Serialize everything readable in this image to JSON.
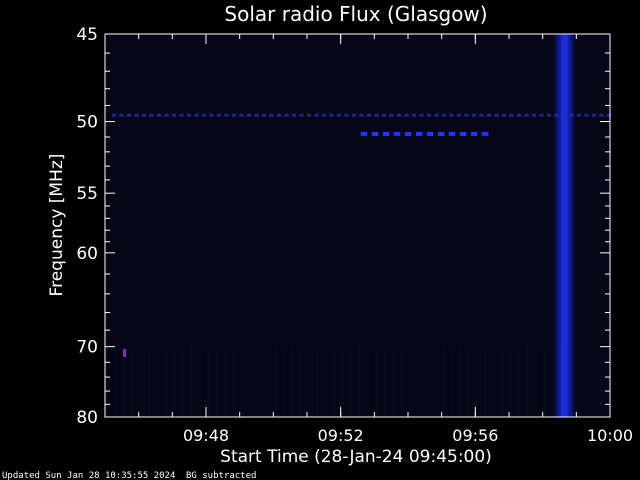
{
  "chart_data": {
    "type": "heatmap",
    "title": "Solar radio Flux (Glasgow)",
    "xlabel": "Start Time (28-Jan-24 09:45:00)",
    "ylabel": "Frequency [MHz]",
    "x_unit": "minutes after 09:45:00",
    "xlim": [
      0,
      15
    ],
    "ylim": [
      45,
      80
    ],
    "y_scale": "reciprocal",
    "y_inverted": true,
    "x_ticks": [
      {
        "value": 3,
        "label": "09:48"
      },
      {
        "value": 7,
        "label": "09:52"
      },
      {
        "value": 11,
        "label": "09:56"
      },
      {
        "value": 15,
        "label": "10:00"
      }
    ],
    "y_ticks": [
      {
        "value": 45,
        "label": "45"
      },
      {
        "value": 50,
        "label": "50"
      },
      {
        "value": 55,
        "label": "55"
      },
      {
        "value": 60,
        "label": "60"
      },
      {
        "value": 70,
        "label": "70"
      },
      {
        "value": 80,
        "label": "80"
      }
    ],
    "features": [
      {
        "name": "burst",
        "t_start": 13.3,
        "t_end": 14.0,
        "f_min": 45,
        "f_max": 80,
        "color": "#1a2fe0"
      },
      {
        "name": "interference-line",
        "t_start": 0.2,
        "t_end": 15,
        "freq": 49.6,
        "color": "#2233bb"
      },
      {
        "name": "interference-line-dashed",
        "t_start": 7.6,
        "t_end": 11.5,
        "freq": 50.8,
        "color": "#1f37ff"
      },
      {
        "name": "spot",
        "t_start": 0.3,
        "t_end": 0.35,
        "freq": 70.8,
        "color": "#8a2be2"
      }
    ],
    "colors": {
      "background": "#000000",
      "plot_background": "#060616",
      "axes": "#ffffff"
    }
  },
  "footer": {
    "updated": "Updated Sun Jan 28 10:35:55 2024",
    "note": "BG subtracted"
  }
}
